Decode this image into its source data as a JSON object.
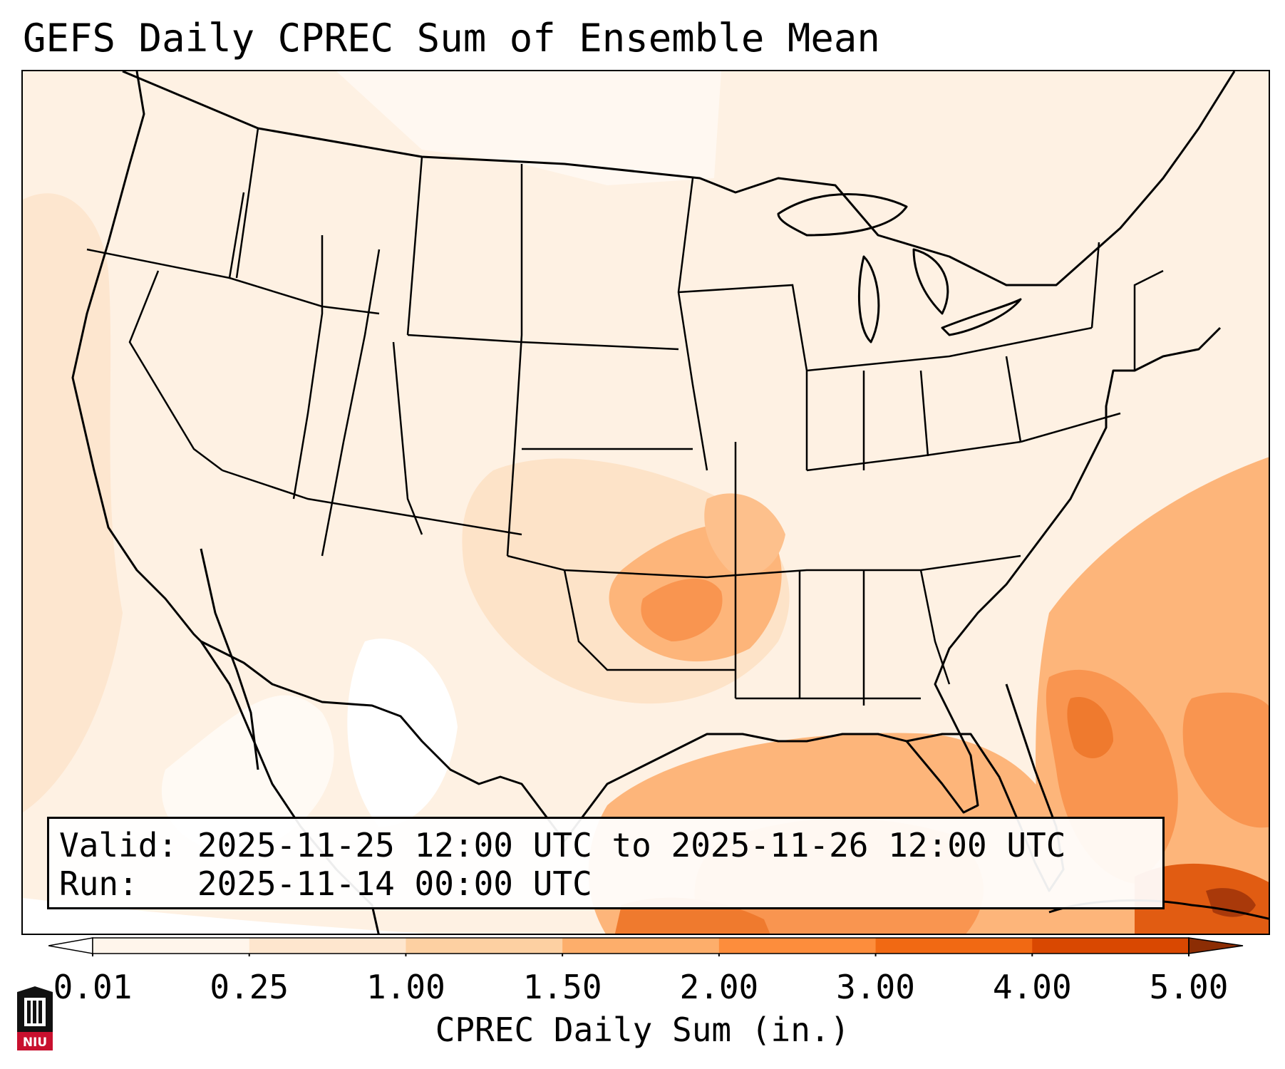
{
  "title": "GEFS Daily CPREC Sum of Ensemble Mean",
  "info": {
    "valid_label": "Valid:",
    "valid_value": "2025-11-25 12:00 UTC to 2025-11-26 12:00 UTC",
    "run_label": "Run:",
    "run_value": "2025-11-14 00:00 UTC"
  },
  "colorbar": {
    "label": "CPREC Daily Sum (in.)",
    "ticks": [
      "0.01",
      "0.25",
      "1.00",
      "1.50",
      "2.00",
      "3.00",
      "4.00",
      "5.00"
    ],
    "colors": [
      "#fff5eb",
      "#fee6ce",
      "#fdd0a2",
      "#fdae6b",
      "#fd8d3c",
      "#f16913",
      "#d94801",
      "#8c2d04"
    ],
    "extend": "both"
  },
  "logo": {
    "text": "NIU",
    "colors": {
      "red": "#c8102e",
      "black": "#111111"
    }
  },
  "map": {
    "region": "Contiguous United States",
    "highlights": [
      {
        "area": "Oklahoma / Arkansas",
        "level": "1.50-2.00"
      },
      {
        "area": "Gulf of Mexico",
        "level": "1.50-3.00"
      },
      {
        "area": "Western Atlantic off Southeast coast",
        "level": "2.00-3.00"
      },
      {
        "area": "Caribbean near Cuba",
        "level": "3.00-5.00"
      }
    ]
  }
}
